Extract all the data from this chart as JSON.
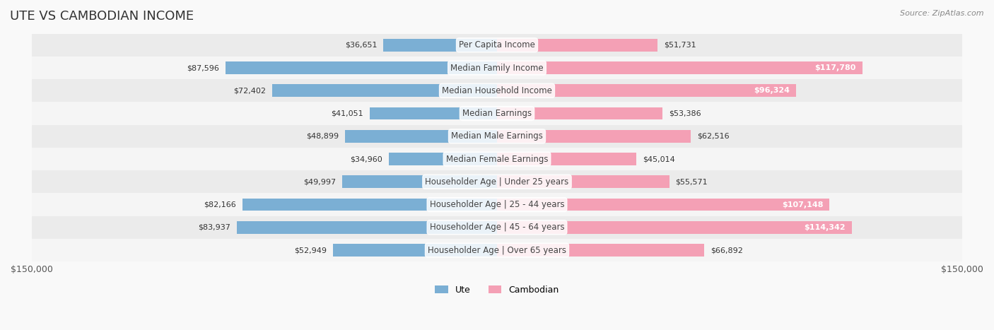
{
  "title": "UTE VS CAMBODIAN INCOME",
  "source": "Source: ZipAtlas.com",
  "categories": [
    "Per Capita Income",
    "Median Family Income",
    "Median Household Income",
    "Median Earnings",
    "Median Male Earnings",
    "Median Female Earnings",
    "Householder Age | Under 25 years",
    "Householder Age | 25 - 44 years",
    "Householder Age | 45 - 64 years",
    "Householder Age | Over 65 years"
  ],
  "ute_values": [
    36651,
    87596,
    72402,
    41051,
    48899,
    34960,
    49997,
    82166,
    83937,
    52949
  ],
  "cambodian_values": [
    51731,
    117780,
    96324,
    53386,
    62516,
    45014,
    55571,
    107148,
    114342,
    66892
  ],
  "ute_color": "#7bafd4",
  "ute_color_dark": "#4a7fb5",
  "cambodian_color": "#f4a0b5",
  "cambodian_color_dark": "#e05c8a",
  "max_value": 150000,
  "bar_height": 0.55,
  "background_color": "#f5f5f5",
  "row_color_light": "#fafafa",
  "row_color_dark": "#f0f0f0",
  "label_fontsize": 8.5,
  "title_fontsize": 13,
  "value_fontsize": 8.0
}
